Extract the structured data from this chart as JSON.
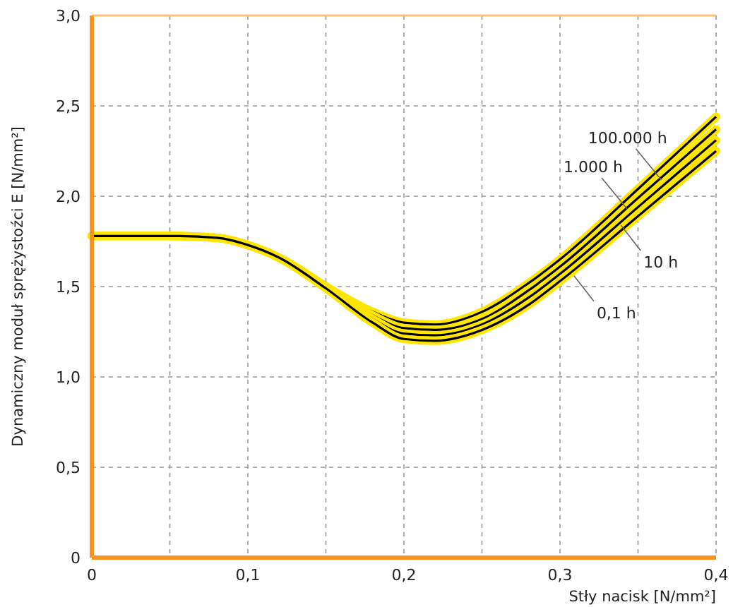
{
  "chart_data": {
    "type": "line",
    "xlabel": "Stły nacisk [N/mm²]",
    "ylabel": "Dynamiczny moduł sprężystoźci E [N/mm²]",
    "x": [
      0,
      0.05,
      0.08,
      0.1,
      0.12,
      0.15,
      0.18,
      0.2,
      0.22,
      0.25,
      0.28,
      0.3,
      0.35,
      0.4
    ],
    "series": [
      {
        "color": "#000000",
        "values": [
          1.78,
          1.78,
          1.77,
          1.73,
          1.66,
          1.5,
          1.36,
          1.3,
          1.29,
          1.36,
          1.52,
          1.65,
          2.04,
          2.44
        ]
      },
      {
        "color": "#000000",
        "values": [
          1.78,
          1.78,
          1.77,
          1.73,
          1.66,
          1.5,
          1.34,
          1.27,
          1.26,
          1.32,
          1.48,
          1.61,
          1.99,
          2.37
        ]
      },
      {
        "color": "#000000",
        "values": [
          1.78,
          1.78,
          1.77,
          1.73,
          1.66,
          1.5,
          1.32,
          1.24,
          1.23,
          1.29,
          1.44,
          1.57,
          1.94,
          2.31
        ]
      },
      {
        "color": "#000000",
        "values": [
          1.78,
          1.78,
          1.77,
          1.73,
          1.66,
          1.49,
          1.3,
          1.21,
          1.2,
          1.26,
          1.4,
          1.53,
          1.89,
          2.25
        ]
      }
    ],
    "annotations": [
      {
        "text": "100.000 h",
        "x": 0.365,
        "y": 2.09
      },
      {
        "text": "1.000 h",
        "x": 0.343,
        "y": 1.93
      },
      {
        "text": "10 h",
        "x": 0.339,
        "y": 1.84
      },
      {
        "text": "0,1 h",
        "x": 0.309,
        "y": 1.56
      }
    ],
    "xlim": [
      0,
      0.4
    ],
    "ylim": [
      0,
      3
    ],
    "xticks": [
      0,
      {
        "value": 0.05,
        "label": null
      },
      {
        "value": 0.1,
        "label": "0,1"
      },
      {
        "value": 0.15,
        "label": null
      },
      {
        "value": 0.2,
        "label": "0,2"
      },
      {
        "value": 0.25,
        "label": null
      },
      {
        "value": 0.3,
        "label": "0,3"
      },
      {
        "value": 0.35,
        "label": null
      },
      {
        "value": 0.4,
        "label": "0,4"
      }
    ],
    "yticks": [
      0,
      {
        "value": 0.5,
        "label": "0,5"
      },
      {
        "value": 1,
        "label": "1,0"
      },
      {
        "value": 1.5,
        "label": "1,5"
      },
      {
        "value": 2,
        "label": "2,0"
      },
      {
        "value": 2.5,
        "label": "2,5"
      },
      {
        "value": 3,
        "label": "3,0"
      }
    ],
    "grid": true,
    "marker": "none",
    "line_style": "solid"
  }
}
